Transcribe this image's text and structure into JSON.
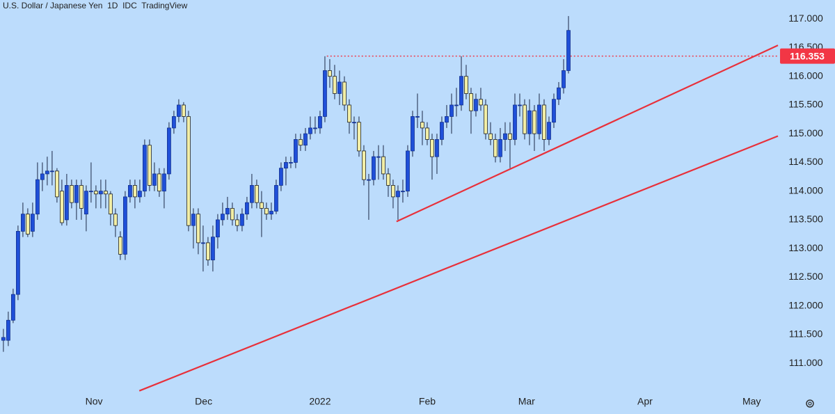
{
  "chart_data": {
    "type": "candlestick",
    "title": "U.S. Dollar / Japanese Yen  1D  IDC  TradingView",
    "open": [
      111.4,
      111.4,
      111.75,
      112.2,
      113.3,
      113.6,
      113.3,
      113.6,
      114.2,
      114.3,
      114.35,
      114.35,
      114.0,
      113.5,
      114.1,
      113.8,
      114.1,
      113.6,
      114.0,
      114.0,
      113.95,
      114.0,
      113.95,
      113.6,
      113.2,
      112.9,
      113.9,
      114.1,
      113.9,
      114.0,
      114.8,
      114.1,
      114.3,
      114.0,
      114.3,
      115.1,
      115.3,
      115.5,
      115.3,
      113.4,
      113.6,
      113.1,
      113.1,
      112.8,
      113.2,
      113.5,
      113.6,
      113.7,
      113.5,
      113.4,
      113.6,
      113.8,
      114.1,
      113.8,
      113.7,
      113.6,
      113.65,
      114.1,
      114.4,
      114.5,
      114.5,
      114.9,
      114.8,
      115.0,
      115.1,
      115.1,
      115.3,
      116.1,
      116.0,
      115.7,
      115.9,
      115.5,
      115.2,
      115.2,
      114.7,
      114.2,
      114.2,
      114.6,
      114.6,
      114.3,
      114.1,
      113.9,
      114.0,
      114.0,
      114.7,
      115.3,
      115.2,
      115.1,
      114.9,
      114.6,
      114.9,
      115.2,
      115.3,
      115.5,
      115.5,
      116.0,
      115.7,
      115.4,
      115.6,
      115.5,
      115.0,
      114.9,
      114.6,
      114.9,
      115.0,
      114.9,
      115.5,
      115.5,
      115.0,
      115.4,
      115.0,
      115.5,
      114.9,
      115.2,
      115.6,
      115.8,
      116.1
    ],
    "high": [
      111.6,
      111.9,
      112.3,
      113.4,
      113.8,
      113.7,
      113.8,
      114.5,
      114.5,
      114.6,
      114.7,
      114.4,
      114.2,
      114.3,
      114.2,
      114.2,
      114.2,
      114.1,
      114.5,
      114.1,
      114.2,
      114.2,
      114.0,
      113.7,
      113.3,
      114.0,
      114.2,
      114.2,
      114.2,
      114.9,
      114.9,
      114.5,
      114.4,
      114.4,
      115.2,
      115.4,
      115.6,
      115.55,
      115.4,
      113.7,
      113.7,
      113.4,
      113.2,
      113.4,
      113.6,
      113.8,
      113.9,
      113.8,
      113.6,
      113.7,
      113.9,
      114.3,
      114.2,
      114.0,
      113.8,
      113.8,
      114.2,
      114.5,
      114.6,
      114.6,
      115.0,
      115.0,
      115.1,
      115.3,
      115.3,
      115.4,
      116.35,
      116.3,
      116.2,
      116.1,
      116.0,
      115.6,
      115.3,
      115.3,
      114.8,
      114.3,
      114.7,
      114.8,
      114.8,
      114.4,
      114.2,
      114.1,
      114.2,
      114.8,
      115.4,
      115.7,
      115.4,
      115.2,
      115.0,
      115.0,
      115.3,
      115.5,
      115.7,
      115.8,
      116.35,
      116.2,
      115.8,
      115.7,
      115.8,
      115.6,
      115.2,
      115.0,
      115.1,
      115.2,
      115.2,
      115.7,
      115.7,
      115.6,
      115.6,
      115.5,
      115.7,
      115.6,
      115.3,
      115.7,
      115.9,
      116.3,
      117.05
    ],
    "low": [
      111.2,
      111.3,
      111.7,
      112.1,
      113.2,
      113.2,
      113.2,
      113.5,
      114.0,
      114.1,
      114.1,
      113.8,
      113.4,
      113.4,
      113.7,
      113.5,
      113.5,
      113.3,
      113.8,
      113.7,
      113.7,
      113.7,
      113.4,
      113.2,
      112.8,
      112.8,
      113.8,
      113.7,
      113.8,
      113.9,
      114.0,
      114.0,
      113.9,
      113.7,
      114.2,
      115.0,
      115.2,
      115.2,
      113.3,
      113.0,
      112.9,
      112.6,
      112.7,
      112.6,
      113.0,
      113.4,
      113.5,
      113.4,
      113.3,
      113.3,
      113.5,
      113.7,
      113.7,
      113.2,
      113.5,
      113.5,
      113.6,
      114.0,
      114.1,
      114.4,
      114.4,
      114.7,
      114.7,
      114.9,
      115.0,
      115.0,
      115.2,
      115.8,
      115.6,
      115.5,
      115.4,
      115.0,
      114.9,
      114.6,
      114.1,
      113.5,
      114.1,
      114.2,
      114.2,
      113.9,
      113.7,
      113.5,
      113.8,
      113.9,
      114.6,
      115.1,
      114.8,
      114.8,
      114.2,
      114.3,
      114.8,
      115.1,
      115.0,
      115.3,
      115.4,
      115.6,
      115.0,
      115.3,
      115.4,
      114.9,
      114.8,
      114.5,
      114.5,
      114.7,
      114.4,
      114.8,
      115.3,
      114.9,
      114.8,
      114.7,
      114.9,
      114.7,
      114.8,
      115.1,
      115.5,
      115.7,
      116.05
    ],
    "close": [
      111.45,
      111.75,
      112.2,
      113.3,
      113.6,
      113.25,
      113.6,
      114.2,
      114.3,
      114.35,
      114.35,
      113.9,
      113.45,
      114.1,
      113.8,
      114.1,
      113.7,
      114.0,
      114.0,
      113.95,
      114.0,
      113.95,
      113.6,
      113.4,
      112.9,
      113.9,
      114.1,
      113.9,
      114.0,
      114.8,
      114.1,
      114.3,
      114.0,
      114.3,
      115.1,
      115.3,
      115.5,
      115.3,
      113.4,
      113.6,
      113.1,
      113.1,
      112.8,
      113.2,
      113.5,
      113.6,
      113.7,
      113.5,
      113.4,
      113.6,
      113.8,
      114.1,
      113.8,
      113.7,
      113.6,
      113.65,
      114.1,
      114.4,
      114.5,
      114.5,
      114.9,
      114.8,
      115.0,
      115.1,
      115.1,
      115.3,
      116.1,
      116.0,
      115.7,
      115.9,
      115.5,
      115.2,
      115.2,
      114.7,
      114.2,
      114.2,
      114.6,
      114.6,
      114.3,
      114.1,
      113.9,
      114.0,
      114.0,
      114.7,
      115.3,
      115.3,
      115.1,
      114.9,
      114.6,
      114.9,
      115.2,
      115.3,
      115.5,
      115.5,
      116.0,
      115.7,
      115.4,
      115.6,
      115.5,
      115.0,
      114.9,
      114.6,
      114.9,
      115.0,
      114.9,
      115.5,
      115.5,
      115.0,
      115.4,
      115.0,
      115.5,
      114.9,
      115.2,
      115.6,
      115.8,
      116.1,
      116.8
    ],
    "up_color": "#1f4fd8",
    "down_color": "#f2eea6",
    "xlim": [
      -0.7,
      159
    ],
    "xticks": [
      {
        "value": 18.6,
        "label": "Nov"
      },
      {
        "value": 41.1,
        "label": "Dec"
      },
      {
        "value": 65,
        "label": "2022"
      },
      {
        "value": 87,
        "label": "Feb"
      },
      {
        "value": 107.4,
        "label": "Mar"
      },
      {
        "value": 131.7,
        "label": "Apr"
      },
      {
        "value": 153.6,
        "label": "May"
      }
    ],
    "ylim": [
      110.48,
      117.33
    ],
    "yticks": [
      {
        "value": 111,
        "label": "111.000"
      },
      {
        "value": 111.5,
        "label": "111.500"
      },
      {
        "value": 112,
        "label": "112.000"
      },
      {
        "value": 112.5,
        "label": "112.500"
      },
      {
        "value": 113,
        "label": "113.000"
      },
      {
        "value": 113.5,
        "label": "113.500"
      },
      {
        "value": 114,
        "label": "114.000"
      },
      {
        "value": 114.5,
        "label": "114.500"
      },
      {
        "value": 115,
        "label": "115.000"
      },
      {
        "value": 115.5,
        "label": "115.500"
      },
      {
        "value": 116,
        "label": "116.000"
      },
      {
        "value": 116.5,
        "label": "116.500"
      },
      {
        "value": 117,
        "label": "117.000"
      }
    ],
    "hline": {
      "value": 116.353,
      "x_start": 66.4,
      "color": "#f23645"
    },
    "trendlines": [
      {
        "x": [
          80.7,
          159
        ],
        "y": [
          113.47,
          116.54
        ],
        "color": "#e8303a"
      },
      {
        "x": [
          27.9,
          159
        ],
        "y": [
          110.52,
          114.96
        ],
        "color": "#e8303a"
      }
    ]
  }
}
